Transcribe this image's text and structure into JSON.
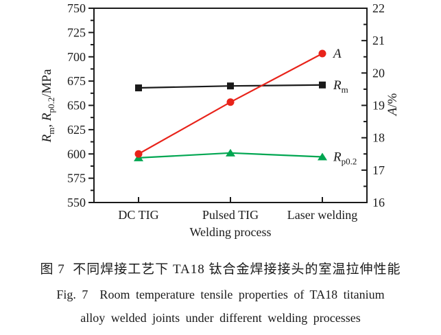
{
  "page": {
    "background": "#ffffff"
  },
  "figure_caption": {
    "zh": "图 7  不同焊接工艺下 TA18 钛合金焊接接头的室温拉伸性能",
    "en_line1": "Fig. 7  Room temperature tensile properties of TA18 titanium",
    "en_line2": "alloy welded joints under different welding processes"
  },
  "colors": {
    "axis": "#1a1a1a",
    "text": "#1a1a1a",
    "rm_series": "#1a1a1a",
    "a_series": "#e8231a",
    "rp02_series": "#00a651"
  },
  "chart_data": {
    "type": "line",
    "title": "",
    "xlabel": "Welding process",
    "categories": [
      "DC TIG",
      "Pulsed TIG",
      "Laser welding"
    ],
    "grid": false,
    "legend_position": "labels-right-of-last-points",
    "axes": {
      "left": {
        "label_text": "Rm, Rp0.2/MPa",
        "label_parts": [
          [
            "R",
            "i"
          ],
          [
            "m",
            "s"
          ],
          [
            ", ",
            ""
          ],
          [
            "R",
            "i"
          ],
          [
            "p0.2",
            "s"
          ],
          [
            "/MPa",
            ""
          ]
        ],
        "range": [
          550,
          750
        ],
        "major_ticks": [
          750,
          725,
          700,
          675,
          650,
          625,
          600,
          575,
          550
        ],
        "minor_per_major": 1
      },
      "right": {
        "label_text": "A/%",
        "label_parts": [
          [
            "A",
            "i"
          ],
          [
            "/%",
            ""
          ]
        ],
        "range": [
          16,
          22
        ],
        "major_ticks": [
          22,
          21,
          20,
          19,
          18,
          17,
          16
        ],
        "minor_per_major": 1
      }
    },
    "series": [
      {
        "id": "Rm",
        "label_text": "Rm",
        "label_parts": [
          [
            "R",
            "i"
          ],
          [
            "m",
            "s"
          ]
        ],
        "axis": "left",
        "marker": "square",
        "color": "#1a1a1a",
        "values": [
          668,
          670,
          671
        ]
      },
      {
        "id": "Rp02",
        "label_text": "Rp0.2",
        "label_parts": [
          [
            "R",
            "i"
          ],
          [
            "p0.2",
            "s"
          ]
        ],
        "axis": "left",
        "marker": "triangle",
        "color": "#00a651",
        "values": [
          596,
          601,
          597
        ]
      },
      {
        "id": "A",
        "label_text": "A",
        "label_parts": [
          [
            "A",
            "i"
          ]
        ],
        "axis": "right",
        "marker": "circle",
        "color": "#e8231a",
        "values": [
          17.5,
          19.1,
          20.6
        ]
      }
    ]
  }
}
